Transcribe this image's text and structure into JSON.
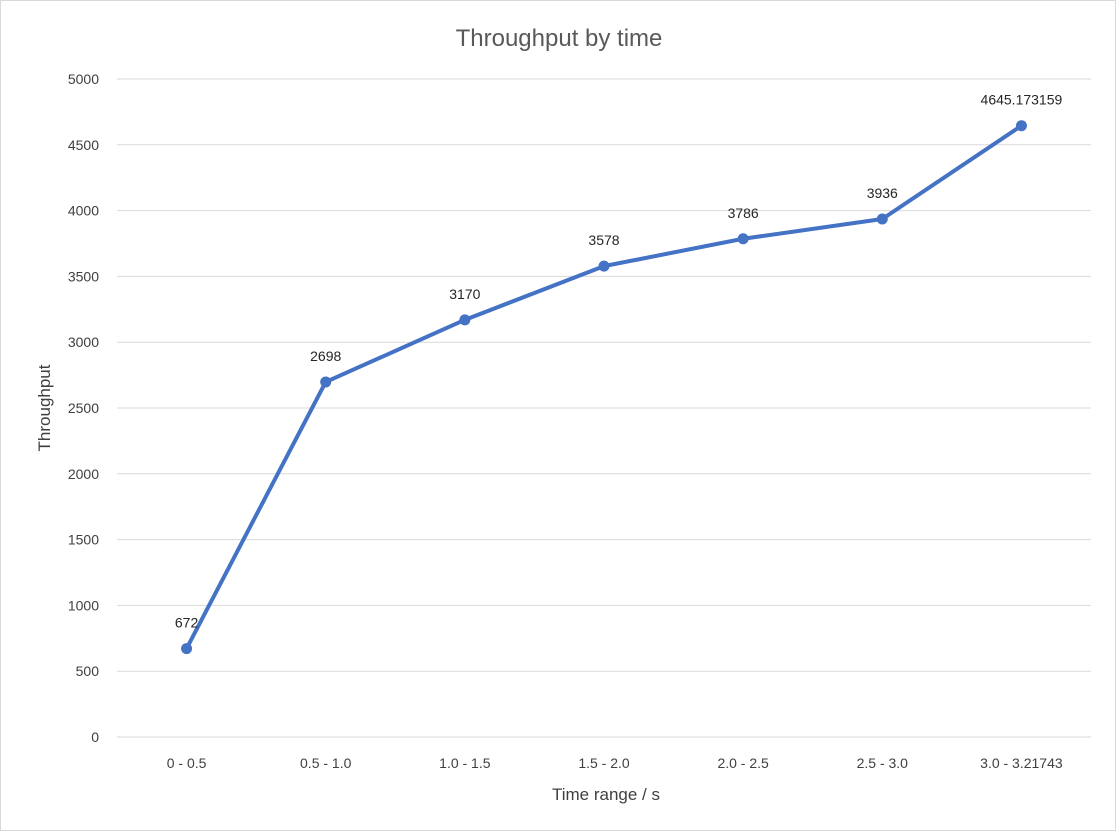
{
  "chart_data": {
    "type": "line",
    "title": "Throughput by time",
    "xlabel": "Time range / s",
    "ylabel": "Throughput",
    "ylim": [
      0,
      5000
    ],
    "yticks": [
      0,
      500,
      1000,
      1500,
      2000,
      2500,
      3000,
      3500,
      4000,
      4500,
      5000
    ],
    "grid": true,
    "legend": "none",
    "color": "#4472C4",
    "categories": [
      "0 - 0.5",
      "0.5 - 1.0",
      "1.0 - 1.5",
      "1.5 - 2.0",
      "2.0 - 2.5",
      "2.5 - 3.0",
      "3.0 - 3.21743"
    ],
    "values": [
      672,
      2698,
      3170,
      3578,
      3786,
      3936,
      4645.173159
    ],
    "data_labels": [
      "672",
      "2698",
      "3170",
      "3578",
      "3786",
      "3936",
      "4645.173159"
    ]
  }
}
